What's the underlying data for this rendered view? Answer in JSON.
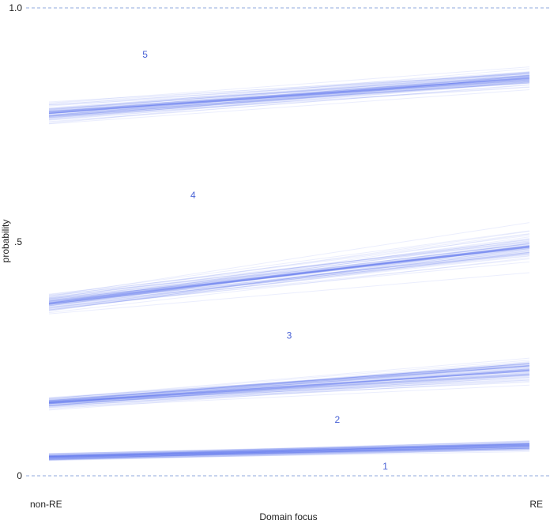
{
  "chart_data": {
    "type": "line",
    "xlabel": "Domain focus",
    "ylabel": "probability",
    "categories": [
      "non-RE",
      "RE"
    ],
    "ylim": [
      0,
      1
    ],
    "y_ticks": [
      {
        "value": 0,
        "label": "0"
      },
      {
        "value": 0.5,
        "label": ".5"
      },
      {
        "value": 1,
        "label": "1.0"
      }
    ],
    "grid": "dashed reference lines at 0 and 1.0",
    "line_color": "#5c74f0",
    "label_color": "#4a63d6",
    "reference_line_color": "#8faadc",
    "draws_per_series": 70,
    "series": [
      {
        "name": "1",
        "values": [
          0.04,
          0.065
        ],
        "spread": [
          0.012,
          0.018
        ]
      },
      {
        "name": "2",
        "values": [
          0.155,
          0.225
        ],
        "spread": [
          0.02,
          0.04
        ]
      },
      {
        "name": "3",
        "values": [
          0.37,
          0.49
        ],
        "spread": [
          0.03,
          0.05
        ]
      },
      {
        "name": "4",
        "values": [
          0.775,
          0.85
        ],
        "spread": [
          0.03,
          0.03
        ]
      },
      {
        "name": "5",
        "values": [
          1.0,
          1.0
        ],
        "spread": [
          0,
          0
        ]
      }
    ],
    "annotations": [
      {
        "text": "5",
        "x_frac": 0.2,
        "y": 0.9
      },
      {
        "text": "4",
        "x_frac": 0.3,
        "y": 0.6
      },
      {
        "text": "3",
        "x_frac": 0.5,
        "y": 0.3
      },
      {
        "text": "2",
        "x_frac": 0.6,
        "y": 0.12
      },
      {
        "text": "1",
        "x_frac": 0.7,
        "y": 0.02
      }
    ]
  }
}
